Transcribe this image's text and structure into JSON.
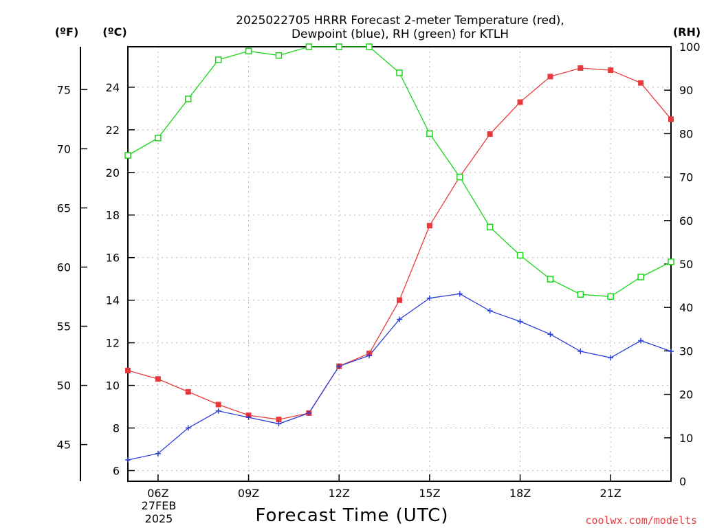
{
  "chart_data": {
    "type": "line",
    "title_line1": "2025022705 HRRR Forecast 2-meter Temperature (red),",
    "title_line2": "Dewpoint (blue), RH (green) for KTLH",
    "xlabel": "Forecast Time (UTC)",
    "credit": "coolwx.com/modelts",
    "y_left_f_label": "(ºF)",
    "y_left_c_label": "(ºC)",
    "y_right_label": "(RH)",
    "date_label_line1": "27FEB",
    "date_label_line2": "2025",
    "x_hours": [
      5,
      6,
      7,
      8,
      9,
      10,
      11,
      12,
      13,
      14,
      15,
      16,
      17,
      18,
      19,
      20,
      21,
      22,
      23
    ],
    "x_range": [
      5,
      23
    ],
    "x_ticks": [
      {
        "hour": 6,
        "label": "06Z"
      },
      {
        "hour": 9,
        "label": "09Z"
      },
      {
        "hour": 12,
        "label": "12Z"
      },
      {
        "hour": 15,
        "label": "15Z"
      },
      {
        "hour": 18,
        "label": "18Z"
      },
      {
        "hour": 21,
        "label": "21Z"
      }
    ],
    "ylim_c": [
      5.5,
      25.9
    ],
    "yticks_c": [
      6,
      8,
      10,
      12,
      14,
      16,
      18,
      20,
      22,
      24
    ],
    "yticks_f": [
      45,
      50,
      55,
      60,
      65,
      70,
      75
    ],
    "ylim_rh": [
      0,
      100
    ],
    "yticks_rh": [
      0,
      10,
      20,
      30,
      40,
      50,
      60,
      70,
      80,
      90,
      100
    ],
    "grid": true,
    "series": [
      {
        "name": "2-meter Temperature",
        "axis": "celsius",
        "color": "#e8393c",
        "marker": "filled-square",
        "values": [
          10.7,
          10.3,
          9.7,
          9.1,
          8.6,
          8.4,
          8.7,
          10.9,
          11.5,
          14.0,
          17.5,
          19.8,
          21.8,
          23.3,
          24.5,
          24.9,
          24.8,
          24.2,
          22.5
        ]
      },
      {
        "name": "Dewpoint",
        "axis": "celsius",
        "color": "#2b3fd8",
        "marker": "plus",
        "values": [
          6.5,
          6.8,
          8.0,
          8.8,
          8.5,
          8.2,
          8.7,
          10.9,
          11.4,
          13.1,
          14.1,
          14.3,
          13.5,
          13.0,
          12.4,
          11.6,
          11.3,
          12.1,
          11.6
        ]
      },
      {
        "name": "RH",
        "axis": "rh",
        "color": "#19d619",
        "marker": "open-square",
        "values": [
          75,
          79,
          88,
          97,
          99,
          98,
          100,
          100,
          100,
          94,
          80,
          70,
          58.5,
          52,
          46.5,
          43,
          42.5,
          47,
          50.5
        ]
      }
    ]
  }
}
